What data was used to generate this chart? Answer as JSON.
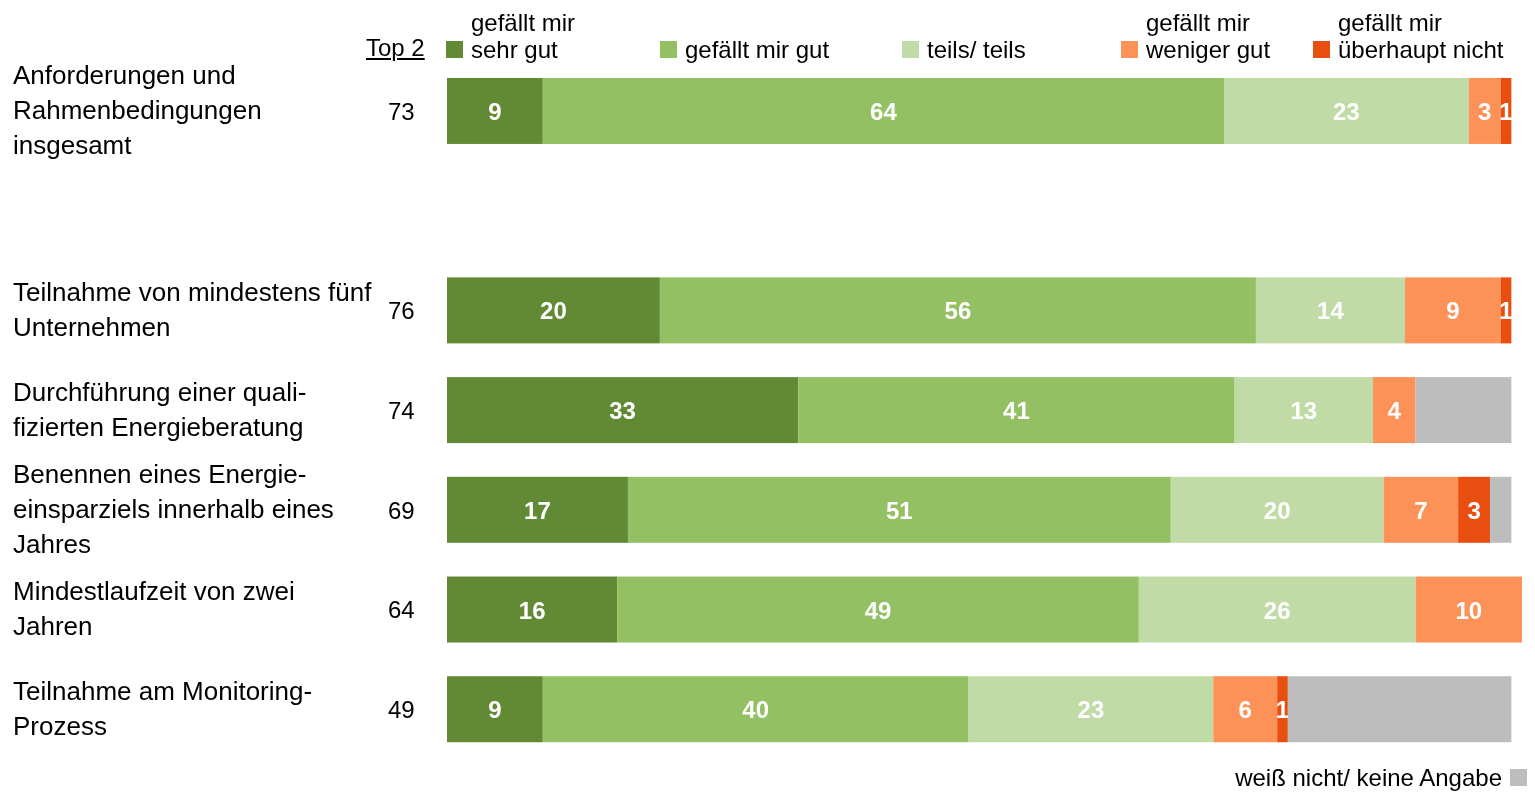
{
  "chart_data": {
    "type": "bar",
    "orientation": "horizontal",
    "stacked": true,
    "legend": "top",
    "tick_labels": "y",
    "xlim": [
      0,
      101
    ],
    "annotations": [
      "Top 2",
      "73",
      "76",
      "74",
      "69",
      "64",
      "49"
    ],
    "categories": [
      "Anforderungen und Rahmenbedingungen insgesamt",
      null,
      "Teilnahme von mindestens fünf Unternehmen",
      "Durchführung einer quali-fizierten Energieberatung",
      "Benennen eines Energie-einsparziels innerhalb eines Jahres",
      "Mindestlaufzeit von zwei Jahren",
      "Teilnahme am Monitoring-Prozess"
    ],
    "series": [
      {
        "name": "gefällt mir sehr gut",
        "color": "#628a35",
        "values": [
          9,
          null,
          20,
          33,
          17,
          16,
          9
        ],
        "value_labels": [
          "9",
          null,
          "20",
          "33",
          "17",
          "16",
          "9"
        ]
      },
      {
        "name": "gefällt mir gut",
        "color": "#93c062",
        "values": [
          64,
          null,
          56,
          41,
          51,
          49,
          40
        ],
        "value_labels": [
          "64",
          null,
          "56",
          "41",
          "51",
          "49",
          "40"
        ]
      },
      {
        "name": "teils/ teils",
        "color": "#c0dba6",
        "values": [
          23,
          null,
          14,
          13,
          20,
          26,
          23
        ],
        "value_labels": [
          "23",
          null,
          "14",
          "13",
          "20",
          "26",
          "23"
        ]
      },
      {
        "name": "gefällt mir weniger gut",
        "color": "#fd9259",
        "values": [
          3,
          null,
          9,
          4,
          7,
          10,
          6
        ],
        "value_labels": [
          "3",
          null,
          "9",
          "4",
          "7",
          "10",
          "6"
        ]
      },
      {
        "name": "gefällt mir überhaupt nicht",
        "color": "#e84e0f",
        "values": [
          1,
          null,
          1,
          null,
          3,
          null,
          1
        ],
        "value_labels": [
          "1",
          null,
          "1",
          null,
          "3",
          null,
          "1"
        ]
      },
      {
        "name": "weiß nicht/ keine Angabe",
        "color": "#bdbdbd",
        "values": [
          null,
          null,
          null,
          9,
          2,
          null,
          21
        ],
        "value_labels": [
          null,
          null,
          null,
          null,
          null,
          null,
          null
        ]
      }
    ]
  }
}
